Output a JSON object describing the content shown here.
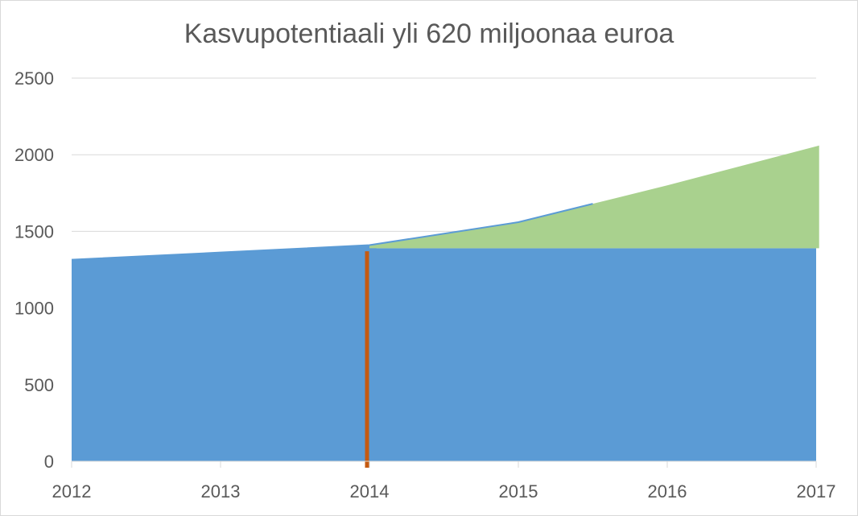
{
  "chart_data": {
    "type": "area",
    "title": "Kasvupotentiaali yli 620 miljoonaa euroa",
    "xlabel": "",
    "ylabel": "",
    "x": [
      "2012",
      "2013",
      "2014",
      "2015",
      "2016",
      "2017"
    ],
    "ylim": [
      0,
      2500
    ],
    "yticks": [
      0,
      500,
      1000,
      1500,
      2000,
      2500
    ],
    "grid": true,
    "legend": "none",
    "series": [
      {
        "type": "area",
        "color": "#5B9BD5",
        "points": [
          {
            "x": 2012,
            "y": 1315
          },
          {
            "x": 2013,
            "y": 1362
          },
          {
            "x": 2014,
            "y": 1410
          },
          {
            "x": 2014.05,
            "y": 1390
          },
          {
            "x": 2017,
            "y": 1390
          }
        ]
      },
      {
        "type": "area",
        "color": "#A9D18E",
        "base": 1390,
        "points": [
          {
            "x": 2014,
            "y": 1410
          },
          {
            "x": 2015,
            "y": 1560
          },
          {
            "x": 2016,
            "y": 1800
          },
          {
            "x": 2017.02,
            "y": 2060
          }
        ]
      },
      {
        "type": "line",
        "color": "#5B9BD5",
        "points": [
          {
            "x": 2012,
            "y": 1315
          },
          {
            "x": 2013,
            "y": 1362
          },
          {
            "x": 2014,
            "y": 1410
          },
          {
            "x": 2015,
            "y": 1560
          },
          {
            "x": 2015.5,
            "y": 1680
          }
        ]
      },
      {
        "type": "marker-line",
        "color": "#C55A11",
        "x": 2014,
        "y_from": 0,
        "y_to": 1370
      }
    ]
  }
}
